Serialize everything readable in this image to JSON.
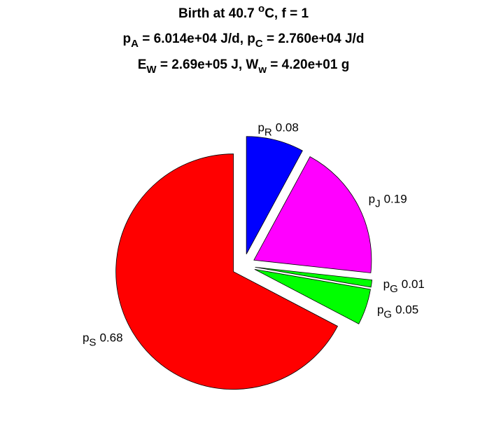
{
  "chart_data": {
    "type": "pie",
    "title": [
      [
        {
          "text": "Birth at 40.7 "
        },
        {
          "text": "o",
          "shift": "super"
        },
        {
          "text": "C, f = 1"
        }
      ],
      [
        {
          "text": "p"
        },
        {
          "text": "A",
          "shift": "sub"
        },
        {
          "text": " = 6.014e+04 J/d, p"
        },
        {
          "text": "C",
          "shift": "sub"
        },
        {
          "text": " = 2.760e+04 J/d"
        }
      ],
      [
        {
          "text": "E"
        },
        {
          "text": "W",
          "shift": "sub"
        },
        {
          "text": " = 2.69e+05 J, W"
        },
        {
          "text": "w",
          "shift": "sub"
        },
        {
          "text": " = 4.20e+01 g"
        }
      ]
    ],
    "categories": [
      {
        "symbol": "p",
        "subscript": "S"
      },
      {
        "symbol": "p",
        "subscript": "G"
      },
      {
        "symbol": "p",
        "subscript": "G"
      },
      {
        "symbol": "p",
        "subscript": "J"
      },
      {
        "symbol": "p",
        "subscript": "R"
      }
    ],
    "values": [
      0.68,
      0.05,
      0.01,
      0.19,
      0.08
    ],
    "colors": [
      "#ff0000",
      "#00ff00",
      "#00ff00",
      "#ff00ff",
      "#0000ff"
    ],
    "explode": [
      true,
      true,
      true,
      true,
      true
    ],
    "start_angle": 90,
    "direction": "counterclockwise"
  }
}
